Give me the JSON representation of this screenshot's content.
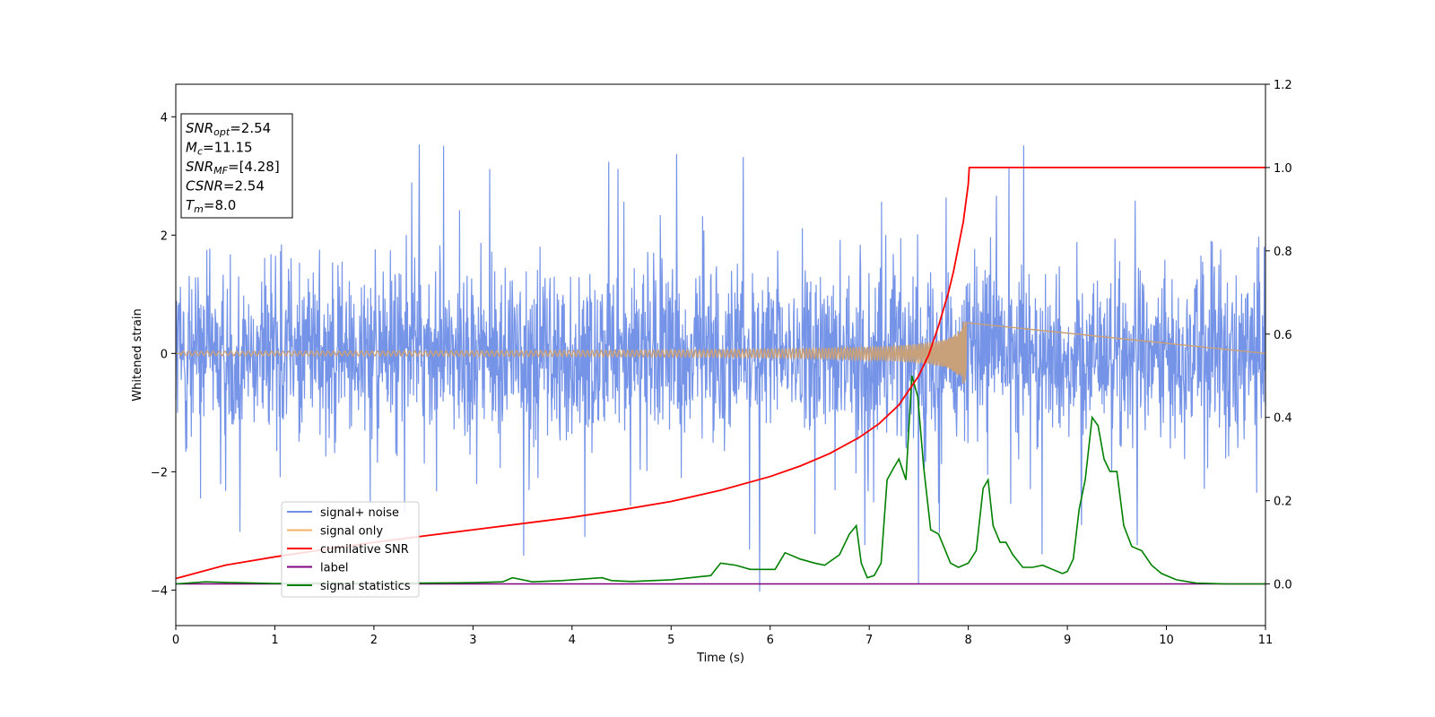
{
  "chart_data": {
    "type": "line",
    "xlabel": "Time (s)",
    "ylabel": "Whitened strain",
    "xlim": [
      0,
      11
    ],
    "ylim": [
      -4.6,
      4.55
    ],
    "y2lim": [
      -0.1,
      1.2
    ],
    "x_ticks": [
      "0",
      "1",
      "2",
      "3",
      "4",
      "5",
      "6",
      "7",
      "8",
      "9",
      "10",
      "11"
    ],
    "y_ticks": [
      "−4",
      "−2",
      "0",
      "2",
      "4"
    ],
    "y2_ticks": [
      "0.0",
      "0.2",
      "0.4",
      "0.6",
      "0.8",
      "1.0",
      "1.2"
    ],
    "grid": false,
    "legend_position": "lower-left",
    "info_box": {
      "snr_opt": {
        "sym": "SNR",
        "sub": "opt",
        "val": "=2.54"
      },
      "mc": {
        "sym": "M",
        "sub": "c",
        "val": "=11.15"
      },
      "snr_mf": {
        "sym": "SNR",
        "sub": "MF",
        "val": "=[4.28]"
      },
      "csnr": {
        "sym": "CSNR",
        "val": "=2.54"
      },
      "tm": {
        "sym": "T",
        "sub": "m",
        "val": "=8.0"
      }
    },
    "series": [
      {
        "name": "signal+ noise",
        "axis": "left",
        "color": "#6f8ee6",
        "description_values": {
          "typical_band": [
            -2.0,
            2.3
          ],
          "max": 4.15,
          "min": -4.15
        }
      },
      {
        "name": "signal only",
        "axis": "left",
        "color": "#f5b16a",
        "chirp": {
          "start_amp": 0.01,
          "end_amp": 0.55,
          "end_time": 8.0
        }
      },
      {
        "name": "cumilative SNR",
        "axis": "right",
        "color": "#ff0000",
        "x": [
          0,
          0.5,
          1,
          1.5,
          2,
          2.5,
          3,
          3.5,
          4,
          4.5,
          5,
          5.5,
          6,
          6.3,
          6.6,
          6.9,
          7.1,
          7.3,
          7.5,
          7.6,
          7.7,
          7.8,
          7.85,
          7.9,
          7.95,
          8.0,
          8.01,
          11
        ],
        "values": [
          0.013,
          0.045,
          0.065,
          0.083,
          0.1,
          0.115,
          0.13,
          0.145,
          0.16,
          0.178,
          0.198,
          0.225,
          0.258,
          0.283,
          0.313,
          0.352,
          0.385,
          0.43,
          0.5,
          0.55,
          0.62,
          0.7,
          0.75,
          0.81,
          0.87,
          0.96,
          1.0,
          1.0
        ]
      },
      {
        "name": "label",
        "axis": "right",
        "color": "#800080",
        "x": [
          0,
          11
        ],
        "values": [
          0,
          0
        ]
      },
      {
        "name": "signal statistics",
        "axis": "right",
        "color": "#008000",
        "x": [
          0,
          0.3,
          0.6,
          1.0,
          1.5,
          2.0,
          2.5,
          3.0,
          3.3,
          3.4,
          3.6,
          3.9,
          4.3,
          4.4,
          4.6,
          5.0,
          5.4,
          5.5,
          5.65,
          5.8,
          5.95,
          6.05,
          6.15,
          6.3,
          6.45,
          6.55,
          6.7,
          6.8,
          6.87,
          6.92,
          6.98,
          7.05,
          7.12,
          7.18,
          7.25,
          7.3,
          7.37,
          7.43,
          7.49,
          7.55,
          7.62,
          7.7,
          7.82,
          7.9,
          8.0,
          8.08,
          8.15,
          8.2,
          8.25,
          8.32,
          8.38,
          8.45,
          8.55,
          8.65,
          8.75,
          8.85,
          8.95,
          9.0,
          9.06,
          9.12,
          9.18,
          9.25,
          9.31,
          9.37,
          9.43,
          9.5,
          9.57,
          9.65,
          9.75,
          9.85,
          9.95,
          10.1,
          10.3,
          10.6,
          11.0
        ],
        "values": [
          0.0,
          0.005,
          0.003,
          0.001,
          0.002,
          0.002,
          0.002,
          0.003,
          0.005,
          0.015,
          0.005,
          0.008,
          0.015,
          0.008,
          0.006,
          0.01,
          0.02,
          0.05,
          0.045,
          0.035,
          0.035,
          0.035,
          0.075,
          0.06,
          0.05,
          0.045,
          0.07,
          0.12,
          0.14,
          0.05,
          0.015,
          0.02,
          0.05,
          0.25,
          0.28,
          0.3,
          0.25,
          0.5,
          0.45,
          0.28,
          0.13,
          0.12,
          0.05,
          0.04,
          0.05,
          0.08,
          0.23,
          0.25,
          0.14,
          0.1,
          0.1,
          0.07,
          0.04,
          0.04,
          0.045,
          0.035,
          0.025,
          0.03,
          0.06,
          0.18,
          0.25,
          0.4,
          0.38,
          0.3,
          0.27,
          0.27,
          0.14,
          0.09,
          0.08,
          0.045,
          0.025,
          0.01,
          0.002,
          0.0,
          0.0
        ]
      }
    ]
  }
}
